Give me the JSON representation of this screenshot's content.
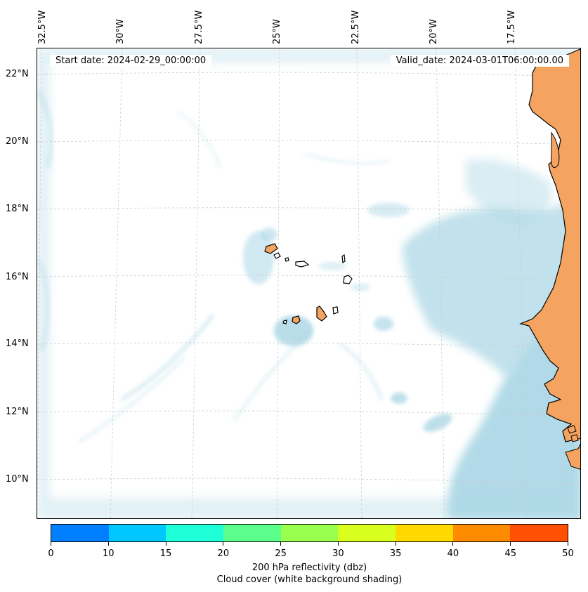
{
  "map": {
    "start_label": "Start date: 2024-02-29_00:00:00",
    "valid_label": "Valid_date: 2024-03-01T06:00:00.00",
    "lon_labels": [
      "32.5°W",
      "30°W",
      "27.5°W",
      "25°W",
      "22.5°W",
      "20°W",
      "17.5°W"
    ],
    "lat_labels": [
      "22°N",
      "20°N",
      "18°N",
      "16°N",
      "14°N",
      "12°N",
      "10°N"
    ],
    "land_color": "#f4a460",
    "cloud_color": "#add8e6",
    "coastline_color": "#000000"
  },
  "colorbar": {
    "ticks": [
      "0",
      "10",
      "15",
      "20",
      "25",
      "30",
      "35",
      "40",
      "45",
      "50"
    ],
    "colors": [
      "#0080ff",
      "#00c8ff",
      "#1effd8",
      "#5dff8c",
      "#99ff4f",
      "#d8ff1e",
      "#ffd800",
      "#ff8c00",
      "#ff4f00"
    ],
    "label": "200 hPa reflectivity (dbz)",
    "sublabel": "Cloud cover (white background shading)"
  }
}
